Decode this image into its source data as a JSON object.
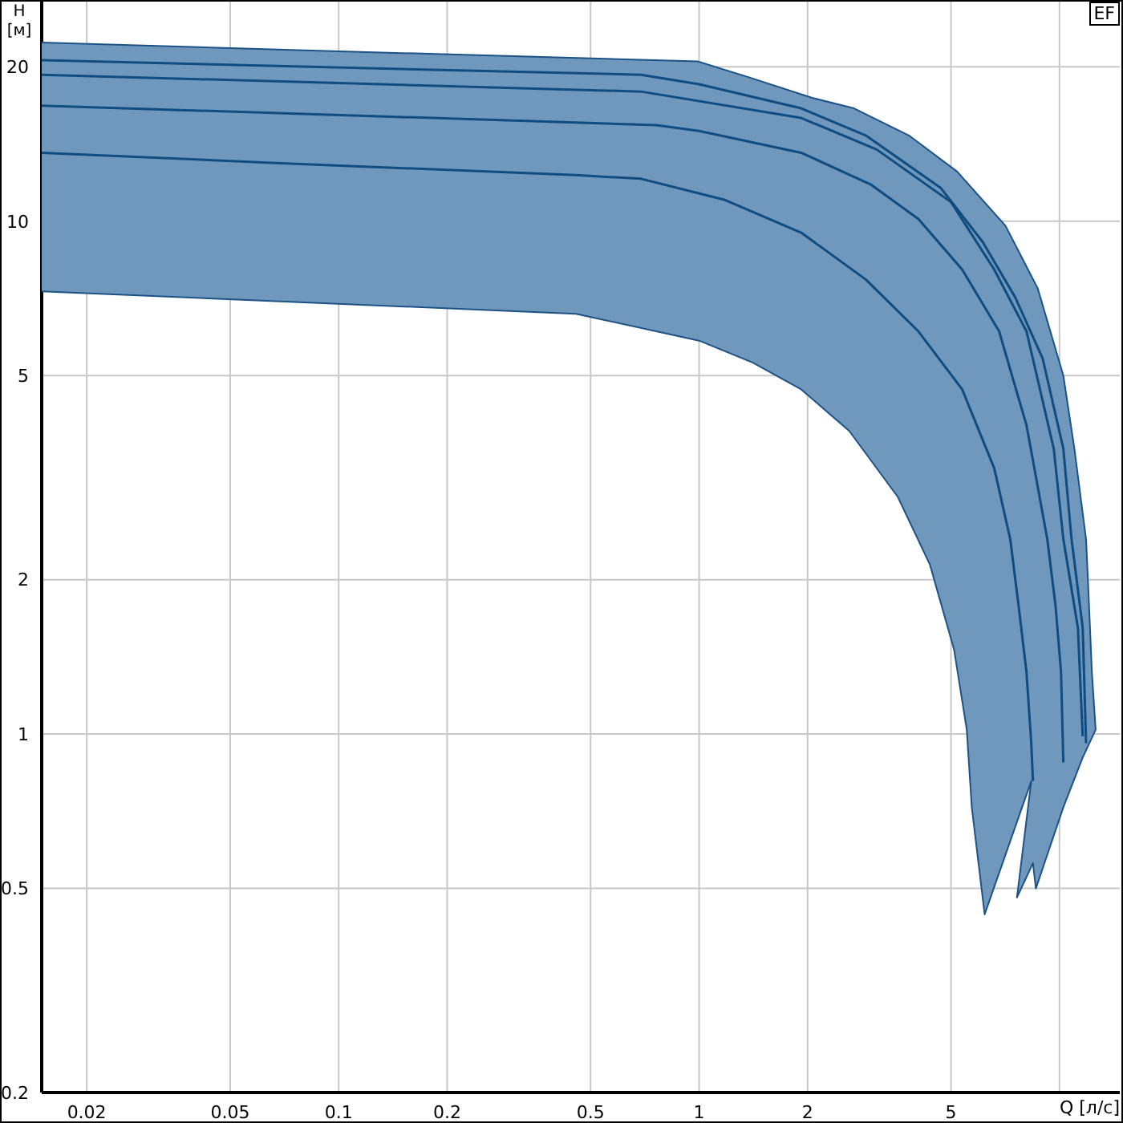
{
  "chart_data": {
    "type": "line",
    "xlabel": "Q [л/с]",
    "ylabel": "H\n[м]",
    "annotations": [
      "EF"
    ],
    "log": "xy",
    "grid": true,
    "marker": "none",
    "xlim": [
      0.015,
      14.7
    ],
    "ylim": [
      0.2,
      27
    ],
    "xticks": [
      0.02,
      0.05,
      0.1,
      0.2,
      0.5,
      1,
      2,
      5,
      {
        "value": 10,
        "label": null
      }
    ],
    "yticks": [
      0.2,
      0.5,
      1,
      2,
      5,
      10,
      20
    ],
    "series": [
      {
        "type": "area",
        "color": "#7098bc",
        "x": [
          0.015,
          0.088,
          0.99,
          1.37,
          2.06,
          2.69,
          3.82,
          5.2,
          7.08,
          8.7,
          10.25,
          11.0,
          11.85,
          12.0,
          12.3,
          12.6,
          11.6,
          10.25,
          9.16,
          8.6,
          8.44,
          7.62,
          8.35,
          6.2,
          5.71,
          5.53,
          5.1,
          4.37,
          3.56,
          2.61,
          1.92,
          1.41,
          1.0,
          0.455,
          0.015
        ],
        "values": [
          22.3,
          21.5,
          20.5,
          19.1,
          17.4,
          16.6,
          14.7,
          12.5,
          9.8,
          7.4,
          5.0,
          3.6,
          2.4,
          1.98,
          1.32,
          1.02,
          0.9,
          0.72,
          0.57,
          0.5,
          0.56,
          0.48,
          0.81,
          0.445,
          0.72,
          1.02,
          1.46,
          2.14,
          2.9,
          3.9,
          4.7,
          5.3,
          5.85,
          6.6,
          7.3
        ]
      },
      {
        "color": "#0f4c81",
        "x": [
          0.015,
          0.69,
          1.0,
          1.92,
          2.9,
          4.69,
          6.13,
          7.54,
          8.98,
          10.25,
          10.8,
          11.6,
          11.85
        ],
        "values": [
          20.6,
          19.3,
          18.5,
          16.6,
          14.7,
          11.6,
          9.1,
          7.1,
          5.4,
          3.6,
          2.4,
          1.61,
          0.96
        ]
      },
      {
        "color": "#0f4c81",
        "x": [
          0.015,
          0.69,
          1.92,
          3.11,
          5.0,
          6.59,
          8.1,
          9.64,
          10.25,
          11.25,
          11.6
        ],
        "values": [
          19.3,
          17.9,
          15.9,
          13.8,
          10.9,
          8.05,
          6.1,
          3.6,
          2.4,
          1.61,
          0.99
        ]
      },
      {
        "color": "#0f4c81",
        "x": [
          0.015,
          0.76,
          1.0,
          1.92,
          2.99,
          4.06,
          5.37,
          6.8,
          8.1,
          9.25,
          9.75,
          10.1,
          10.25
        ],
        "values": [
          16.8,
          15.4,
          15.0,
          13.6,
          11.8,
          10.1,
          8.05,
          6.1,
          4.0,
          2.4,
          1.78,
          1.32,
          0.88
        ]
      },
      {
        "color": "#0f4c81",
        "x": [
          0.015,
          0.065,
          0.455,
          0.69,
          1.18,
          1.92,
          2.9,
          4.06,
          5.37,
          6.59,
          7.3,
          7.7,
          8.1,
          8.35,
          8.44
        ],
        "values": [
          13.6,
          13.0,
          12.3,
          12.1,
          11.0,
          9.5,
          7.7,
          6.1,
          4.7,
          3.3,
          2.4,
          1.78,
          1.32,
          0.96,
          0.81
        ]
      }
    ]
  }
}
